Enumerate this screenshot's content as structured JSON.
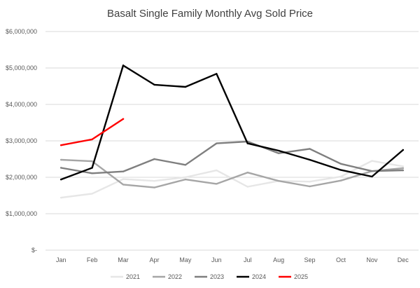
{
  "chart_data": {
    "type": "line",
    "title": "Basalt Single Family Monthly Avg Sold Price",
    "xlabel": "",
    "ylabel": "",
    "categories": [
      "Jan",
      "Feb",
      "Mar",
      "Apr",
      "May",
      "Jun",
      "Jul",
      "Aug",
      "Sep",
      "Oct",
      "Nov",
      "Dec"
    ],
    "ylim": [
      0,
      6000000
    ],
    "yticks": [
      0,
      1000000,
      2000000,
      3000000,
      4000000,
      5000000,
      6000000
    ],
    "ytick_labels": [
      "$-",
      "$1,000,000",
      "$2,000,000",
      "$3,000,000",
      "$4,000,000",
      "$5,000,000",
      "$6,000,000"
    ],
    "grid": "horizontal",
    "legend_position": "bottom",
    "series": [
      {
        "name": "2021",
        "color": "#e6e6e6",
        "width": 2.4,
        "values": [
          1440000,
          1550000,
          1950000,
          1900000,
          2000000,
          2190000,
          1740000,
          1900000,
          1880000,
          2020000,
          2450000,
          2300000
        ]
      },
      {
        "name": "2022",
        "color": "#a6a6a6",
        "width": 2.4,
        "values": [
          2480000,
          2440000,
          1800000,
          1720000,
          1940000,
          1820000,
          2130000,
          1900000,
          1750000,
          1910000,
          2170000,
          2250000
        ]
      },
      {
        "name": "2023",
        "color": "#7f7f7f",
        "width": 2.4,
        "values": [
          2260000,
          2110000,
          2160000,
          2500000,
          2340000,
          2930000,
          2980000,
          2660000,
          2780000,
          2370000,
          2170000,
          2190000
        ]
      },
      {
        "name": "2024",
        "color": "#000000",
        "width": 2.4,
        "values": [
          1940000,
          2260000,
          5070000,
          4540000,
          4480000,
          4840000,
          2930000,
          2730000,
          2480000,
          2200000,
          2020000,
          2750000
        ]
      },
      {
        "name": "2025",
        "color": "#ff0000",
        "width": 2.4,
        "values": [
          2880000,
          3040000,
          3600000,
          null,
          null,
          null,
          null,
          null,
          null,
          null,
          null,
          null
        ]
      }
    ]
  }
}
